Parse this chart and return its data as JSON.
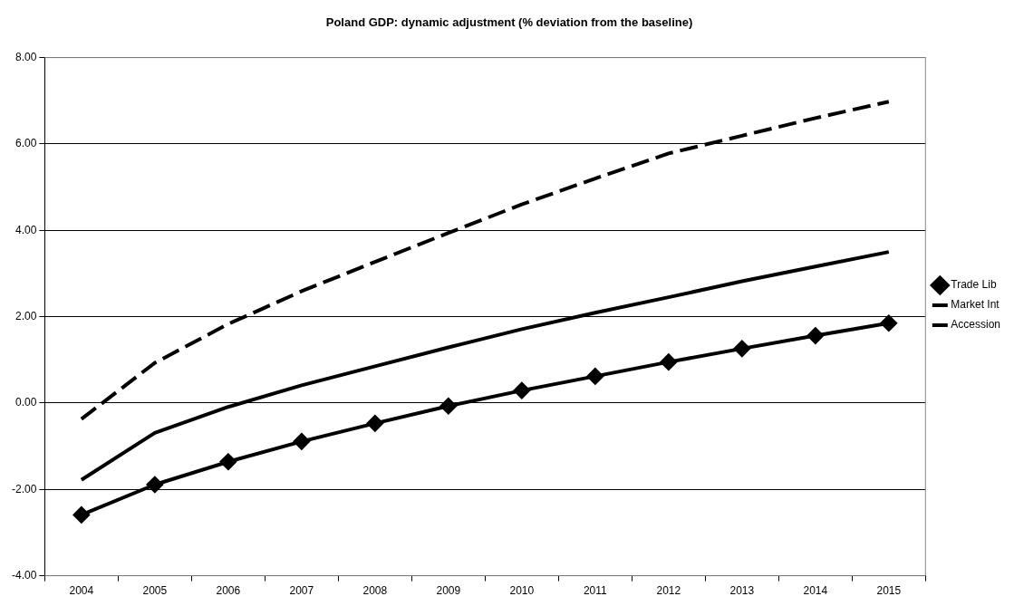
{
  "chart_data": {
    "type": "line",
    "title": "Poland GDP: dynamic adjustment (% deviation from the baseline)",
    "categories": [
      "2004",
      "2005",
      "2006",
      "2007",
      "2008",
      "2009",
      "2010",
      "2011",
      "2012",
      "2013",
      "2014",
      "2015"
    ],
    "series": [
      {
        "name": "Trade Lib",
        "color": "#000000",
        "marker": "diamond",
        "line_style": "solid",
        "values": [
          -2.59,
          -1.89,
          -1.36,
          -0.89,
          -0.47,
          -0.07,
          0.29,
          0.62,
          0.95,
          1.26,
          1.56,
          1.85
        ]
      },
      {
        "name": "Market Int",
        "color": "#000000",
        "marker": "none",
        "line_style": "solid",
        "values": [
          -1.78,
          -0.69,
          -0.09,
          0.41,
          0.85,
          1.29,
          1.71,
          2.09,
          2.45,
          2.82,
          3.16,
          3.5
        ]
      },
      {
        "name": "Accession",
        "color": "#000000",
        "marker": "none",
        "line_style": "dashed",
        "values": [
          -0.37,
          0.93,
          1.83,
          2.59,
          3.27,
          3.94,
          4.6,
          5.2,
          5.78,
          6.19,
          6.6,
          6.98
        ]
      }
    ],
    "ylim": [
      -4,
      8
    ],
    "yticks": [
      {
        "value": -4,
        "label": "-4.00"
      },
      {
        "value": -2,
        "label": "-2.00"
      },
      {
        "value": 0,
        "label": "0.00"
      },
      {
        "value": 2,
        "label": "2.00"
      },
      {
        "value": 4,
        "label": "4.00"
      },
      {
        "value": 6,
        "label": "6.00"
      },
      {
        "value": 8,
        "label": "8.00"
      }
    ],
    "grid": "y",
    "legend": "right"
  }
}
